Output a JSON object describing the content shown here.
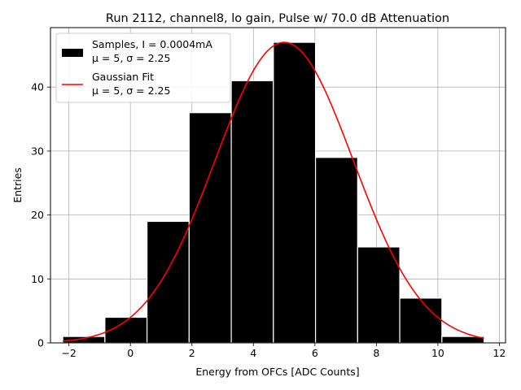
{
  "chart_data": {
    "type": "bar",
    "title": "Run 2112, channel8, lo gain, Pulse w/ 70.0 dB Attenuation",
    "xlabel": "Energy from OFCs [ADC Counts]",
    "ylabel": "Entries",
    "xlim": [
      -2.6,
      12.2
    ],
    "ylim": [
      0,
      49.3
    ],
    "xticks": [
      -2,
      0,
      2,
      4,
      6,
      8,
      10,
      12
    ],
    "yticks": [
      0,
      10,
      20,
      30,
      40
    ],
    "grid": true,
    "legend_position": "top-left",
    "bar_color": "#000000",
    "fit_color": "#ff0000",
    "histogram": {
      "name": "Samples, I = 0.0004mA",
      "stats": "μ = 5, σ = 2.25",
      "bin_edges": [
        -2.2,
        -0.83,
        0.54,
        1.91,
        3.28,
        4.65,
        6.02,
        7.39,
        8.76,
        10.13,
        11.5
      ],
      "counts": [
        1,
        4,
        19,
        36,
        41,
        47,
        29,
        15,
        7,
        1
      ]
    },
    "fit": {
      "name": "Gaussian Fit",
      "stats": "μ = 5, σ = 2.25",
      "mu": 5,
      "sigma": 2.25,
      "amplitude": 47,
      "x_range": [
        -2.2,
        11.5
      ]
    }
  }
}
